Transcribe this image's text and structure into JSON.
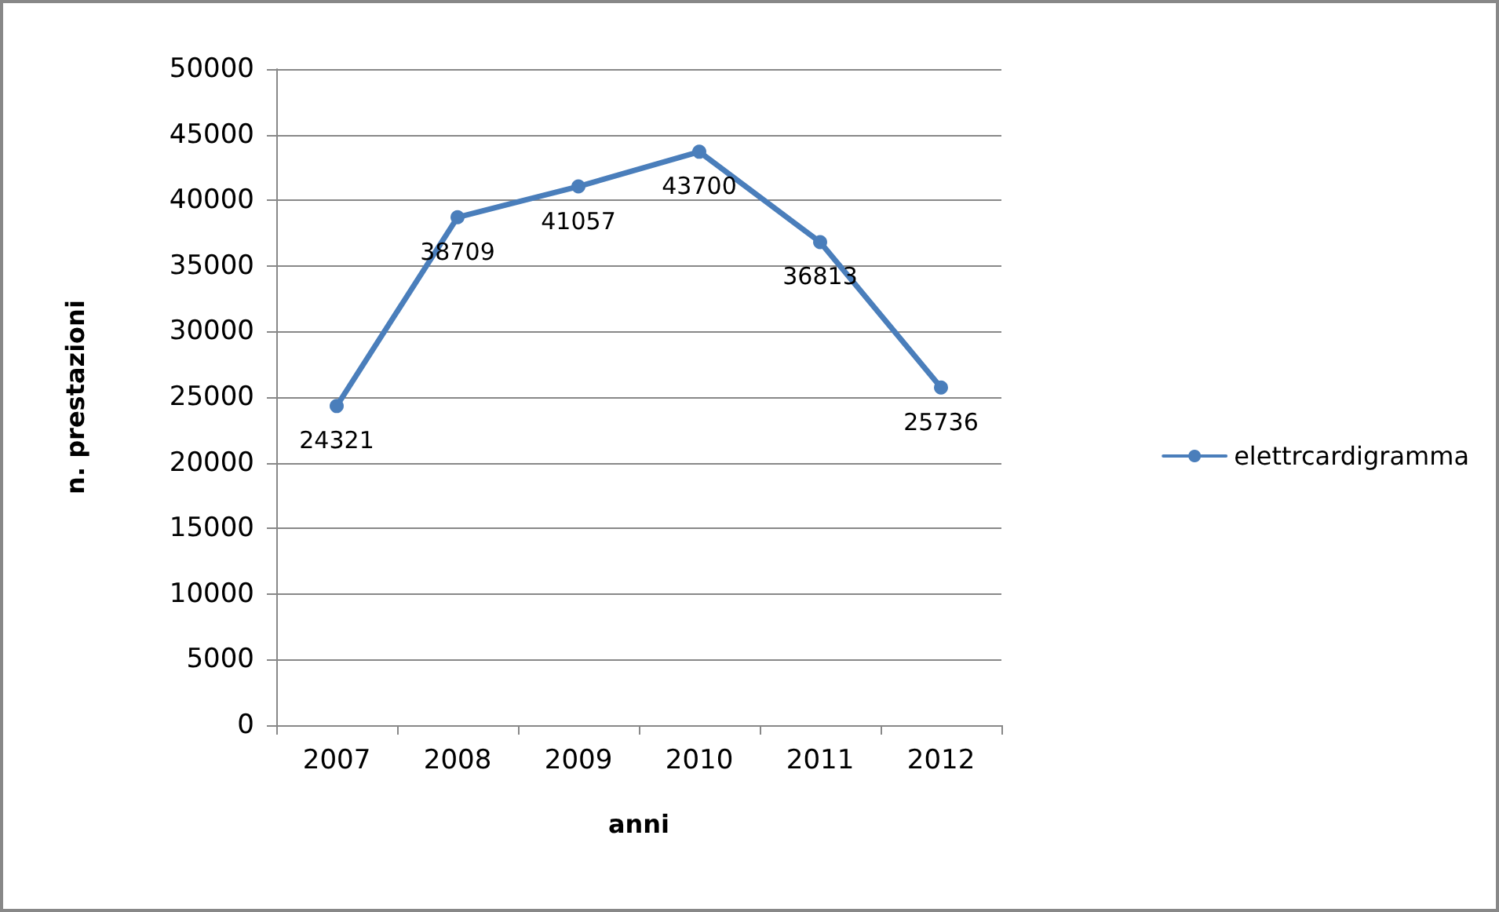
{
  "chart_data": {
    "type": "line",
    "xlabel": "anni",
    "ylabel": "n. prestazioni",
    "categories": [
      "2007",
      "2008",
      "2009",
      "2010",
      "2011",
      "2012"
    ],
    "series": [
      {
        "name": "elettrcardigramma",
        "color": "#4a7ebb",
        "values": [
          24321,
          38709,
          41057,
          43700,
          36813,
          25736
        ]
      }
    ],
    "ylim": [
      0,
      50000
    ],
    "yticks": [
      0,
      5000,
      10000,
      15000,
      20000,
      25000,
      30000,
      35000,
      40000,
      45000,
      50000
    ],
    "grid": "y",
    "legend": "right",
    "marker": "circle",
    "data_labels": true
  }
}
